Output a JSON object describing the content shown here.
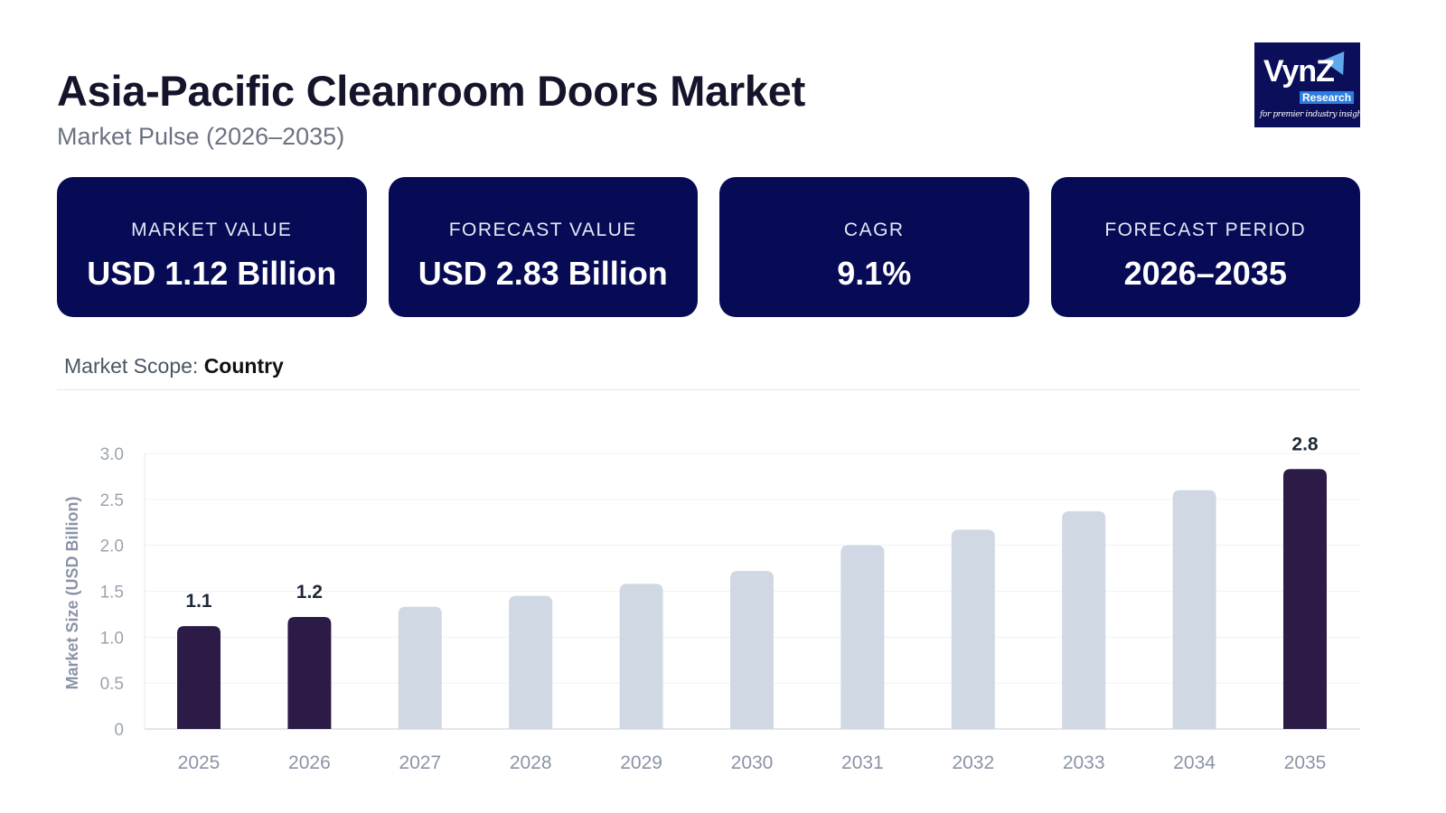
{
  "header": {
    "title": "Asia-Pacific Cleanroom Doors Market",
    "subtitle": "Market Pulse (2026–2035)"
  },
  "logo": {
    "brand": "VynZ",
    "sub": "Research",
    "tagline": "for premier industry insights"
  },
  "cards": [
    {
      "label": "MARKET VALUE",
      "value": "USD 1.12 Billion"
    },
    {
      "label": "FORECAST VALUE",
      "value": "USD 2.83 Billion"
    },
    {
      "label": "CAGR",
      "value": "9.1%"
    },
    {
      "label": "FORECAST PERIOD",
      "value": "2026–2035"
    }
  ],
  "scope": {
    "label": "Market Scope:",
    "value": "Country"
  },
  "chart_data": {
    "type": "bar",
    "ylabel": "Market Size (USD Billion)",
    "ylim": [
      0,
      3.0
    ],
    "yticks": [
      "0",
      "0.5",
      "1.0",
      "1.5",
      "2.0",
      "2.5",
      "3.0"
    ],
    "grid": true,
    "categories": [
      "2025",
      "2026",
      "2027",
      "2028",
      "2029",
      "2030",
      "2031",
      "2032",
      "2033",
      "2034",
      "2035"
    ],
    "values": [
      1.12,
      1.22,
      1.33,
      1.45,
      1.58,
      1.72,
      2.0,
      2.17,
      2.37,
      2.6,
      2.83
    ],
    "data_labels": {
      "0": "1.1",
      "1": "1.2",
      "10": "2.8"
    },
    "colors": {
      "highlight": "#2d1b47",
      "default": "#cfd8e3"
    },
    "highlighted": [
      0,
      1,
      10
    ]
  }
}
